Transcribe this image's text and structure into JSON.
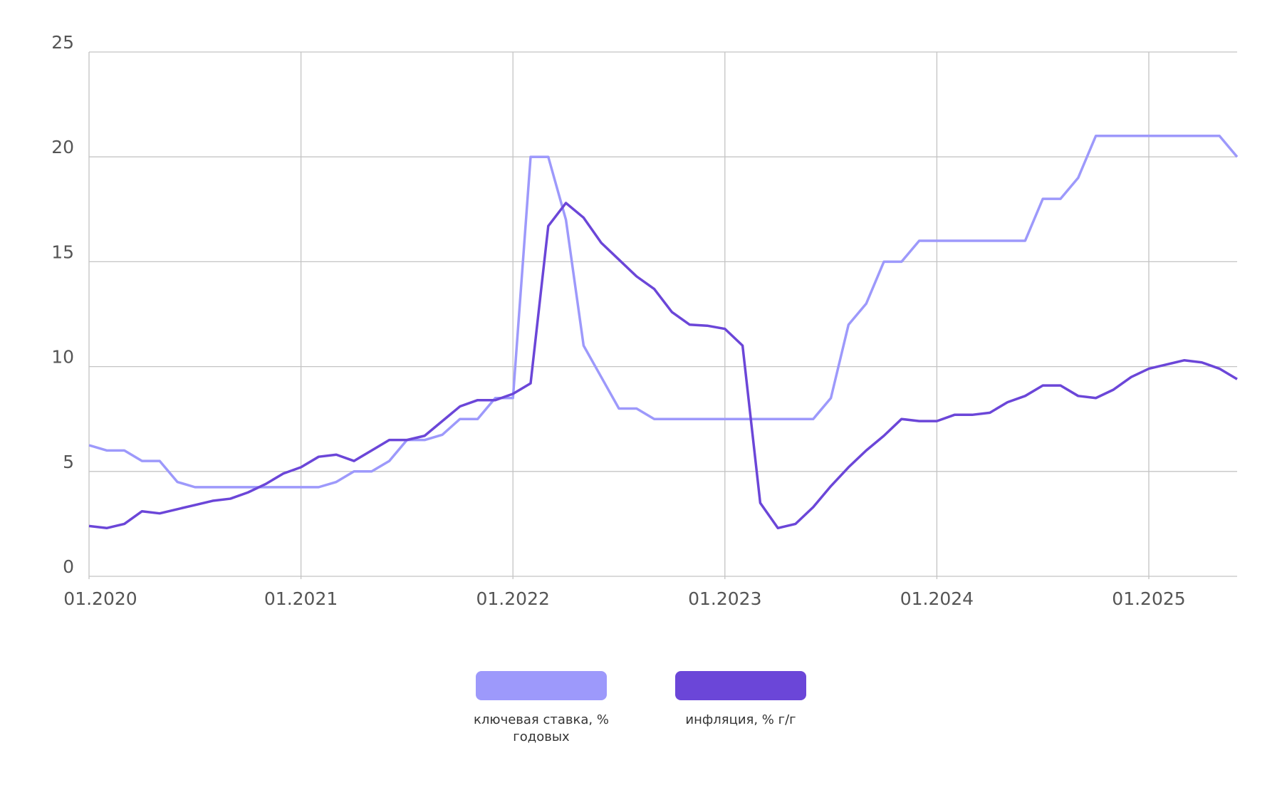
{
  "chart_data": {
    "type": "line",
    "x": [
      "01.2020",
      "02.2020",
      "03.2020",
      "04.2020",
      "05.2020",
      "06.2020",
      "07.2020",
      "08.2020",
      "09.2020",
      "10.2020",
      "11.2020",
      "12.2020",
      "01.2021",
      "02.2021",
      "03.2021",
      "04.2021",
      "05.2021",
      "06.2021",
      "07.2021",
      "08.2021",
      "09.2021",
      "10.2021",
      "11.2021",
      "12.2021",
      "01.2022",
      "02.2022",
      "03.2022",
      "04.2022",
      "05.2022",
      "06.2022",
      "07.2022",
      "08.2022",
      "09.2022",
      "10.2022",
      "11.2022",
      "12.2022",
      "01.2023",
      "02.2023",
      "03.2023",
      "04.2023",
      "05.2023",
      "06.2023",
      "07.2023",
      "08.2023",
      "09.2023",
      "10.2023",
      "11.2023",
      "12.2023",
      "01.2024",
      "02.2024",
      "03.2024",
      "04.2024",
      "05.2024",
      "06.2024",
      "07.2024",
      "08.2024",
      "09.2024",
      "10.2024",
      "11.2024",
      "12.2024",
      "01.2025",
      "02.2025",
      "03.2025",
      "04.2025",
      "05.2025",
      "06.2025"
    ],
    "series": [
      {
        "name": "ключевая ставка, % годовых",
        "color": "#9d99fb",
        "values": [
          6.25,
          6,
          6,
          5.5,
          5.5,
          4.5,
          4.25,
          4.25,
          4.25,
          4.25,
          4.25,
          4.25,
          4.25,
          4.25,
          4.5,
          5,
          5,
          5.5,
          6.5,
          6.5,
          6.75,
          7.5,
          7.5,
          8.5,
          8.5,
          20,
          20,
          17,
          11,
          9.5,
          8,
          8,
          7.5,
          7.5,
          7.5,
          7.5,
          7.5,
          7.5,
          7.5,
          7.5,
          7.5,
          7.5,
          8.5,
          12,
          13,
          15,
          15,
          16,
          16,
          16,
          16,
          16,
          16,
          16,
          18,
          18,
          19,
          21,
          21,
          21,
          21,
          21,
          21,
          21,
          21,
          20
        ]
      },
      {
        "name": "инфляция, % г/г",
        "color": "#6b46d8",
        "values": [
          2.4,
          2.3,
          2.5,
          3.1,
          3.0,
          3.2,
          3.4,
          3.6,
          3.7,
          4.0,
          4.4,
          4.9,
          5.2,
          5.7,
          5.8,
          5.5,
          6.0,
          6.5,
          6.5,
          6.7,
          7.4,
          8.1,
          8.4,
          8.4,
          8.7,
          9.2,
          16.7,
          17.8,
          17.1,
          15.9,
          15.1,
          14.3,
          13.7,
          12.6,
          12.0,
          11.95,
          11.8,
          11.0,
          3.5,
          2.3,
          2.5,
          3.3,
          4.3,
          5.2,
          6.0,
          6.7,
          7.5,
          7.4,
          7.4,
          7.7,
          7.7,
          7.8,
          8.3,
          8.6,
          9.1,
          9.1,
          8.6,
          8.5,
          8.9,
          9.5,
          9.9,
          10.1,
          10.3,
          10.2,
          9.9,
          9.4
        ]
      }
    ],
    "ylim": [
      0,
      25
    ],
    "yticks": [
      0,
      5,
      10,
      15,
      20,
      25
    ],
    "xticks": [
      "01.2020",
      "01.2021",
      "01.2022",
      "01.2023",
      "01.2024",
      "01.2025"
    ],
    "grid": true
  }
}
